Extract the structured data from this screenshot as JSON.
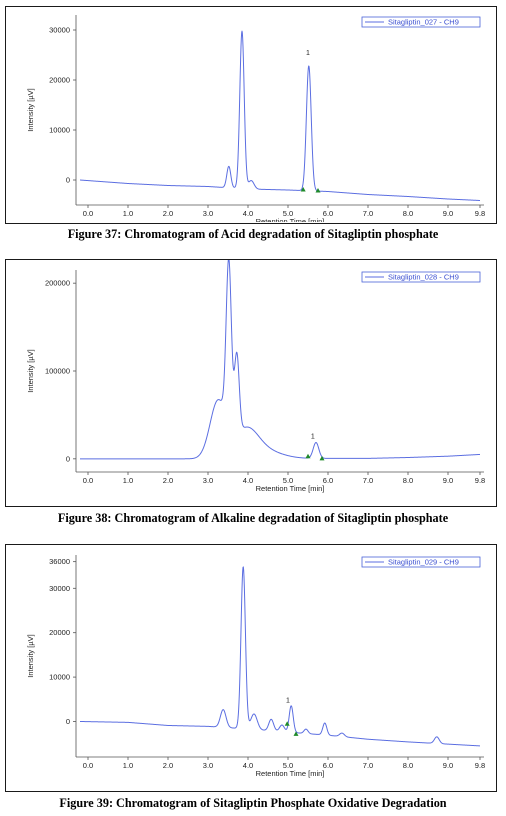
{
  "chart_data": [
    {
      "type": "line",
      "caption": "Figure 37: Chromatogram of Acid degradation of Sitagliptin phosphate",
      "xlabel": "Retention Time [min]",
      "ylabel": "Intensity [µV]",
      "xlim": [
        -0.3,
        9.9
      ],
      "ylim": [
        -5000,
        33000
      ],
      "xticks": [
        0.0,
        1.0,
        2.0,
        3.0,
        4.0,
        5.0,
        6.0,
        7.0,
        8.0,
        9.0,
        9.8
      ],
      "yticks": [
        0,
        10000,
        20000,
        30000
      ],
      "ytick_labels": [
        "0",
        "10000",
        "20000",
        "30000"
      ],
      "legend": "Sitagliptin_027 - CH9",
      "legend_position": "top-right",
      "line_color": "#5b6ee1",
      "marker_color": "#1f8a2a",
      "baseline": [
        [
          -0.2,
          0
        ],
        [
          1.0,
          -700
        ],
        [
          2.0,
          -1100
        ],
        [
          3.0,
          -1300
        ],
        [
          4.0,
          -1800
        ],
        [
          5.0,
          -2000
        ],
        [
          6.0,
          -2300
        ],
        [
          7.0,
          -2900
        ],
        [
          8.0,
          -3300
        ],
        [
          9.0,
          -3800
        ],
        [
          9.8,
          -4100
        ]
      ],
      "peaks": [
        {
          "rt": 3.52,
          "height": 4300,
          "width": 0.05
        },
        {
          "rt": 3.85,
          "height": 31500,
          "width": 0.055
        },
        {
          "rt": 4.08,
          "height": 1700,
          "width": 0.07
        },
        {
          "rt": 5.52,
          "height": 25000,
          "width": 0.06
        }
      ],
      "labels": [
        {
          "text": "1",
          "x": 5.5,
          "y": 24600
        }
      ],
      "markers": [
        {
          "x": 5.38,
          "y": -1900
        },
        {
          "x": 5.75,
          "y": -2100
        }
      ]
    },
    {
      "type": "line",
      "caption": "Figure 38: Chromatogram of Alkaline degradation of Sitagliptin phosphate",
      "xlabel": "Retention Time [min]",
      "ylabel": "Intensity [µV]",
      "xlim": [
        -0.3,
        9.9
      ],
      "ylim": [
        -15000,
        215000
      ],
      "xticks": [
        0.0,
        1.0,
        2.0,
        3.0,
        4.0,
        5.0,
        6.0,
        7.0,
        8.0,
        9.0,
        9.8
      ],
      "yticks": [
        0,
        100000,
        200000
      ],
      "ytick_labels": [
        "0",
        "100000",
        "200000"
      ],
      "legend": "Sitagliptin_028 - CH9",
      "legend_position": "top-right",
      "line_color": "#5b6ee1",
      "marker_color": "#1f8a2a",
      "baseline": [
        [
          -0.2,
          0
        ],
        [
          3.0,
          0
        ],
        [
          5.0,
          500
        ],
        [
          6.0,
          500
        ],
        [
          7.0,
          500
        ],
        [
          8.0,
          1500
        ],
        [
          9.0,
          3000
        ],
        [
          9.8,
          5000
        ]
      ],
      "peaks": [
        {
          "rt": 3.25,
          "height": 65000,
          "width": 0.2
        },
        {
          "rt": 3.52,
          "height": 190000,
          "width": 0.065
        },
        {
          "rt": 3.72,
          "height": 90000,
          "width": 0.06
        },
        {
          "rt": 3.95,
          "height": 32000,
          "width": 0.3
        },
        {
          "rt": 4.45,
          "height": 8000,
          "width": 0.4
        },
        {
          "rt": 5.7,
          "height": 18000,
          "width": 0.07
        }
      ],
      "labels": [
        {
          "text": "1",
          "x": 5.62,
          "y": 21000
        }
      ],
      "markers": [
        {
          "x": 5.5,
          "y": 3000
        },
        {
          "x": 5.85,
          "y": 500
        }
      ]
    },
    {
      "type": "line",
      "caption": "Figure 39: Chromatogram of Sitagliptin Phosphate Oxidative Degradation",
      "xlabel": "Retention Time [min]",
      "ylabel": "Intensity [µV]",
      "xlim": [
        -0.3,
        9.9
      ],
      "ylim": [
        -8000,
        37500
      ],
      "xticks": [
        0.0,
        1.0,
        2.0,
        3.0,
        4.0,
        5.0,
        6.0,
        7.0,
        8.0,
        9.0,
        9.8
      ],
      "yticks": [
        0,
        10000,
        20000,
        30000,
        36000
      ],
      "ytick_labels": [
        "0",
        "10000",
        "20000",
        "30000",
        "36000"
      ],
      "legend": "Sitagliptin_029 - CH9",
      "legend_position": "top-right",
      "line_color": "#5b6ee1",
      "marker_color": "#1f8a2a",
      "baseline": [
        [
          -0.2,
          0
        ],
        [
          1.0,
          -200
        ],
        [
          2.0,
          -900
        ],
        [
          3.0,
          -1100
        ],
        [
          4.0,
          -1700
        ],
        [
          5.0,
          -2400
        ],
        [
          6.0,
          -3100
        ],
        [
          7.0,
          -4000
        ],
        [
          8.0,
          -4600
        ],
        [
          9.0,
          -5100
        ],
        [
          9.8,
          -5500
        ]
      ],
      "peaks": [
        {
          "rt": 3.38,
          "height": 4000,
          "width": 0.07
        },
        {
          "rt": 3.88,
          "height": 36500,
          "width": 0.055
        },
        {
          "rt": 4.15,
          "height": 3500,
          "width": 0.08
        },
        {
          "rt": 4.58,
          "height": 2600,
          "width": 0.06
        },
        {
          "rt": 4.85,
          "height": 1500,
          "width": 0.06
        },
        {
          "rt": 5.08,
          "height": 6000,
          "width": 0.05
        },
        {
          "rt": 5.45,
          "height": 1000,
          "width": 0.05
        },
        {
          "rt": 5.92,
          "height": 2700,
          "width": 0.05
        },
        {
          "rt": 6.35,
          "height": 800,
          "width": 0.06
        },
        {
          "rt": 8.72,
          "height": 1500,
          "width": 0.06
        }
      ],
      "labels": [
        {
          "text": "1",
          "x": 5.0,
          "y": 3800
        }
      ],
      "markers": [
        {
          "x": 4.98,
          "y": -500
        },
        {
          "x": 5.2,
          "y": -2800
        }
      ]
    }
  ]
}
